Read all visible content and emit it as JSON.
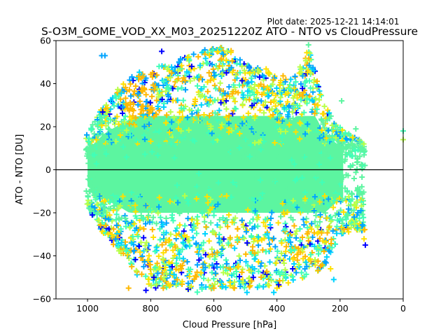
{
  "chart_data": {
    "type": "scatter",
    "title": "S-O3M_GOME_VOD_XX_M03_20251220Z ATO - NTO vs CloudPressure",
    "annotation": "Plot date: 2025-12-21 14:14:01",
    "xlabel": "Cloud Pressure [hPa]",
    "ylabel": "ATO - NTO [DU]",
    "xlim": [
      1100,
      0
    ],
    "ylim": [
      -60,
      60
    ],
    "x_inverted": true,
    "xticks": [
      1000,
      800,
      600,
      400,
      200,
      0
    ],
    "xtick_labels": [
      "1000",
      "800",
      "600",
      "400",
      "200",
      "0"
    ],
    "yticks": [
      -60,
      -40,
      -20,
      0,
      20,
      40,
      60
    ],
    "ytick_labels": [
      "−60",
      "−40",
      "−20",
      "0",
      "20",
      "40",
      "60"
    ],
    "reference_line": {
      "y": 0,
      "color": "#000000"
    },
    "marker": "+",
    "grid": false,
    "legend": "none",
    "colormap": [
      "#0000ff",
      "#00a4ff",
      "#00d4ff",
      "#40ffb8",
      "#5cf5a0",
      "#b8ff48",
      "#ffe000",
      "#ffb800"
    ],
    "dense_core": {
      "x_range": [
        1010,
        190
      ],
      "y_range": [
        -20,
        25
      ],
      "dominant_color": "#5cf5a0"
    },
    "envelope": [
      {
        "x": 1005,
        "y_min": -16,
        "y_max": 17
      },
      {
        "x": 980,
        "y_min": -22,
        "y_max": 22
      },
      {
        "x": 950,
        "y_min": -30,
        "y_max": 30
      },
      {
        "x": 900,
        "y_min": -38,
        "y_max": 38
      },
      {
        "x": 850,
        "y_min": -48,
        "y_max": 45
      },
      {
        "x": 800,
        "y_min": -55,
        "y_max": 46
      },
      {
        "x": 750,
        "y_min": -55,
        "y_max": 50
      },
      {
        "x": 700,
        "y_min": -55,
        "y_max": 52
      },
      {
        "x": 650,
        "y_min": -57,
        "y_max": 56
      },
      {
        "x": 600,
        "y_min": -55,
        "y_max": 58
      },
      {
        "x": 550,
        "y_min": -55,
        "y_max": 56
      },
      {
        "x": 500,
        "y_min": -55,
        "y_max": 50
      },
      {
        "x": 450,
        "y_min": -55,
        "y_max": 48
      },
      {
        "x": 400,
        "y_min": -55,
        "y_max": 45
      },
      {
        "x": 350,
        "y_min": -52,
        "y_max": 42
      },
      {
        "x": 300,
        "y_min": -50,
        "y_max": 58
      },
      {
        "x": 250,
        "y_min": -45,
        "y_max": 30
      },
      {
        "x": 200,
        "y_min": -30,
        "y_max": 20
      },
      {
        "x": 150,
        "y_min": -28,
        "y_max": 15
      },
      {
        "x": 120,
        "y_min": -35,
        "y_max": 12
      }
    ],
    "notable_points": [
      {
        "x": 955,
        "y": 53,
        "color": "#00a4ff"
      },
      {
        "x": 945,
        "y": 53,
        "color": "#00a4ff"
      },
      {
        "x": 765,
        "y": 55,
        "color": "#0000ff"
      },
      {
        "x": 670,
        "y": 48,
        "color": "#0000ff"
      },
      {
        "x": 560,
        "y": 45,
        "color": "#0000ff"
      },
      {
        "x": 455,
        "y": 43,
        "color": "#0000ff"
      },
      {
        "x": 985,
        "y": -21,
        "color": "#0000ff"
      },
      {
        "x": 120,
        "y": -35,
        "color": "#0000ff"
      },
      {
        "x": 145,
        "y": -27,
        "color": "#00d4ff"
      },
      {
        "x": 150,
        "y": 19,
        "color": "#5cf5a0"
      },
      {
        "x": 160,
        "y": 15,
        "color": "#ffe000"
      },
      {
        "x": 125,
        "y": 12,
        "color": "#b8ff48"
      },
      {
        "x": 0,
        "y": 18,
        "color": "#40ffb8"
      },
      {
        "x": 0,
        "y": 14,
        "color": "#b8ff48"
      },
      {
        "x": 255,
        "y": 26,
        "color": "#ffe000"
      },
      {
        "x": 300,
        "y": 58,
        "color": "#5cf5a0"
      },
      {
        "x": 270,
        "y": 30,
        "color": "#ffe000"
      },
      {
        "x": 195,
        "y": 32,
        "color": "#5cf5a0"
      },
      {
        "x": 815,
        "y": -56,
        "color": "#0000ff"
      },
      {
        "x": 790,
        "y": -50,
        "color": "#0000ff"
      },
      {
        "x": 870,
        "y": -55,
        "color": "#ffb800"
      },
      {
        "x": 860,
        "y": -45,
        "color": "#ffb800"
      },
      {
        "x": 760,
        "y": -55,
        "color": "#ffb800"
      },
      {
        "x": 700,
        "y": -52,
        "color": "#ffe000"
      },
      {
        "x": 600,
        "y": -55,
        "color": "#ffb800"
      },
      {
        "x": 535,
        "y": -55,
        "color": "#ffb800"
      },
      {
        "x": 495,
        "y": -57,
        "color": "#00d4ff"
      },
      {
        "x": 410,
        "y": -57,
        "color": "#00d4ff"
      },
      {
        "x": 400,
        "y": -55,
        "color": "#ffe000"
      },
      {
        "x": 230,
        "y": -46,
        "color": "#ffe000"
      },
      {
        "x": 220,
        "y": -51,
        "color": "#00d4ff"
      },
      {
        "x": 350,
        "y": -46,
        "color": "#0000ff"
      },
      {
        "x": 475,
        "y": -50,
        "color": "#0000ff"
      }
    ]
  }
}
